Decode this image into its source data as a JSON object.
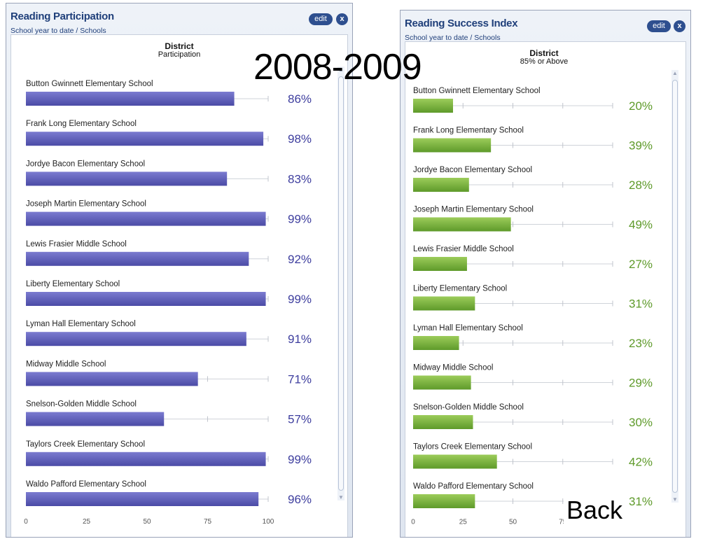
{
  "overlay": {
    "year": "2008-2009",
    "back_label": "Back"
  },
  "panels": [
    {
      "title": "Reading Participation",
      "subtitle": "School year to date / Schools",
      "edit_label": "edit",
      "close_label": "x",
      "column_title": "District",
      "column_subtitle": "Participation",
      "color": "#4b4ba6",
      "value_color": "#3d3d9e"
    },
    {
      "title": "Reading Success Index",
      "subtitle": "School year to date / Schools",
      "edit_label": "edit",
      "close_label": "x",
      "column_title": "District",
      "column_subtitle": "85% or Above",
      "color": "#5e9a2a",
      "value_color": "#5e9a2a"
    }
  ],
  "chart_data": [
    {
      "type": "bar",
      "orientation": "horizontal",
      "title": "Reading Participation",
      "categories": [
        "Button Gwinnett Elementary School",
        "Frank Long Elementary School",
        "Jordye Bacon Elementary School",
        "Joseph Martin Elementary School",
        "Lewis Frasier Middle School",
        "Liberty Elementary School",
        "Lyman Hall Elementary School",
        "Midway Middle School",
        "Snelson-Golden Middle School",
        "Taylors Creek Elementary School",
        "Waldo Pafford Elementary School"
      ],
      "values": [
        86,
        98,
        83,
        99,
        92,
        99,
        91,
        71,
        57,
        99,
        96
      ],
      "value_labels": [
        "86%",
        "98%",
        "83%",
        "99%",
        "92%",
        "99%",
        "91%",
        "71%",
        "57%",
        "99%",
        "96%"
      ],
      "xticks": [
        "0",
        "25",
        "50",
        "75",
        "100"
      ],
      "xlim": [
        0,
        100
      ],
      "grid": true,
      "color": "#4b4ba6"
    },
    {
      "type": "bar",
      "orientation": "horizontal",
      "title": "Reading Success Index",
      "categories": [
        "Button Gwinnett Elementary School",
        "Frank Long Elementary School",
        "Jordye Bacon Elementary School",
        "Joseph Martin Elementary School",
        "Lewis Frasier Middle School",
        "Liberty Elementary School",
        "Lyman Hall Elementary School",
        "Midway Middle School",
        "Snelson-Golden Middle School",
        "Taylors Creek Elementary School",
        "Waldo Pafford Elementary School"
      ],
      "values": [
        20,
        39,
        28,
        49,
        27,
        31,
        23,
        29,
        30,
        42,
        31
      ],
      "value_labels": [
        "20%",
        "39%",
        "28%",
        "49%",
        "27%",
        "31%",
        "23%",
        "29%",
        "30%",
        "42%",
        "31%"
      ],
      "xticks": [
        "0",
        "25",
        "50",
        "75"
      ],
      "xlim": [
        0,
        100
      ],
      "grid": true,
      "color": "#5e9a2a"
    }
  ]
}
